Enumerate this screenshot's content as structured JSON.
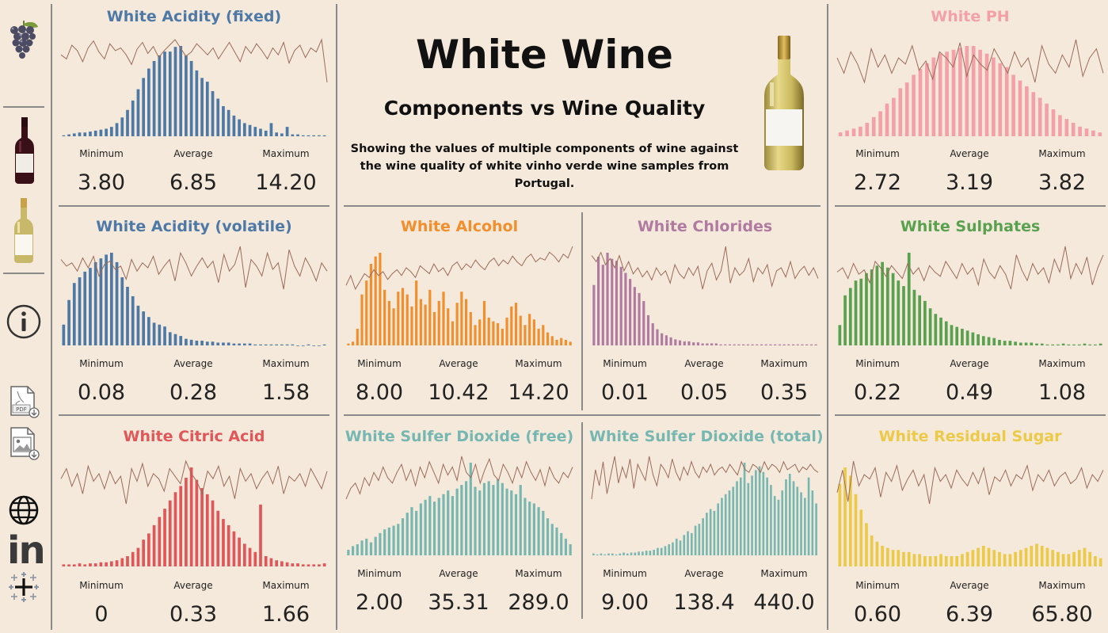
{
  "header": {
    "title": "White Wine",
    "subtitle": "Components vs Wine Quality",
    "description": "Showing the values of multiple components of wine against the wine quality of white vinho verde wine samples from Portugal."
  },
  "sidebar": {
    "icons": [
      "grapes-icon",
      "red-wine-bottle-icon",
      "white-wine-bottle-icon",
      "info-icon",
      "pdf-download-icon",
      "image-download-icon",
      "globe-icon",
      "linkedin-icon",
      "tableau-icon"
    ],
    "pdf_label": "PDF",
    "linkedin_label": "in"
  },
  "stat_labels": {
    "min": "Minimum",
    "avg": "Average",
    "max": "Maximum"
  },
  "panels": {
    "fixed_acidity": {
      "title": "White Acidity (fixed)",
      "color": "#4e79a7",
      "min": "3.80",
      "avg": "6.85",
      "max": "14.20"
    },
    "volatile_acidity": {
      "title": "White Acidity (volatile)",
      "color": "#4e79a7",
      "min": "0.08",
      "avg": "0.28",
      "max": "1.58"
    },
    "citric_acid": {
      "title": "White Citric Acid",
      "color": "#e15759",
      "min": "0",
      "avg": "0.33",
      "max": "1.66"
    },
    "ph": {
      "title": "White PH",
      "color": "#f4a0a8",
      "min": "2.72",
      "avg": "3.19",
      "max": "3.82"
    },
    "sulphates": {
      "title": "White Sulphates",
      "color": "#59a14f",
      "min": "0.22",
      "avg": "0.49",
      "max": "1.08"
    },
    "residual_sugar": {
      "title": "White Residual Sugar",
      "color": "#edc948",
      "min": "0.60",
      "avg": "6.39",
      "max": "65.80"
    },
    "alcohol": {
      "title": "White Alcohol",
      "color": "#f28e2b",
      "min": "8.00",
      "avg": "10.42",
      "max": "14.20"
    },
    "chlorides": {
      "title": "White Chlorides",
      "color": "#b07aa1",
      "min": "0.01",
      "avg": "0.05",
      "max": "0.35"
    },
    "so2_free": {
      "title": "White Sulfer Dioxide (free)",
      "color": "#76b7b2",
      "min": "2.00",
      "avg": "35.31",
      "max": "289.0"
    },
    "so2_total": {
      "title": "White Sulfer Dioxide (total)",
      "color": "#76b7b2",
      "min": "9.00",
      "avg": "138.4",
      "max": "440.0"
    }
  },
  "chart_data": [
    {
      "type": "bar",
      "id": "fixed_acidity",
      "title": "White Acidity (fixed)",
      "quality_line_color": "#9c6b5a",
      "values": [
        1,
        2,
        3,
        4,
        4,
        5,
        6,
        7,
        8,
        10,
        14,
        20,
        28,
        38,
        50,
        62,
        72,
        80,
        86,
        90,
        90,
        95,
        96,
        86,
        80,
        70,
        62,
        58,
        48,
        40,
        32,
        28,
        22,
        18,
        14,
        12,
        10,
        8,
        6,
        14,
        4,
        3,
        10,
        2,
        2,
        1,
        1,
        1,
        1,
        1
      ],
      "quality_line": [
        55,
        52,
        62,
        58,
        50,
        60,
        65,
        57,
        52,
        63,
        58,
        60,
        55,
        48,
        59,
        64,
        56,
        61,
        53,
        58,
        62,
        66,
        60,
        54,
        57,
        63,
        59,
        55,
        60,
        52,
        58,
        64,
        57,
        50,
        61,
        56,
        63,
        58,
        52,
        60,
        55,
        64,
        49,
        58,
        62,
        53,
        60,
        57,
        66,
        35
      ]
    },
    {
      "type": "bar",
      "id": "volatile_acidity",
      "title": "White Acidity (volatile)",
      "quality_line_color": "#9c6b5a",
      "values": [
        22,
        48,
        66,
        72,
        78,
        82,
        88,
        92,
        96,
        98,
        88,
        72,
        62,
        52,
        42,
        36,
        30,
        24,
        22,
        20,
        14,
        12,
        10,
        7,
        6,
        5,
        5,
        4,
        4,
        3,
        3,
        3,
        2,
        2,
        2,
        2,
        1,
        1,
        1,
        1,
        1,
        1,
        1,
        1,
        0,
        0,
        1,
        0,
        0,
        1
      ],
      "quality_line": [
        62,
        58,
        60,
        55,
        63,
        57,
        64,
        52,
        59,
        61,
        56,
        58,
        50,
        62,
        55,
        60,
        57,
        64,
        53,
        58,
        62,
        49,
        66,
        60,
        52,
        58,
        63,
        57,
        61,
        48,
        65,
        55,
        59,
        70,
        45,
        62,
        58,
        52,
        66,
        56,
        60,
        44,
        68,
        58,
        52,
        63,
        57,
        49,
        60,
        55
      ]
    },
    {
      "type": "bar",
      "id": "citric_acid",
      "title": "White Citric Acid",
      "quality_line_color": "#9c6b5a",
      "values": [
        2,
        2,
        2,
        3,
        2,
        3,
        3,
        4,
        4,
        5,
        6,
        8,
        10,
        14,
        18,
        26,
        32,
        40,
        48,
        56,
        64,
        72,
        78,
        86,
        96,
        84,
        76,
        70,
        64,
        54,
        46,
        40,
        34,
        28,
        22,
        18,
        14,
        60,
        10,
        8,
        6,
        5,
        4,
        3,
        3,
        2,
        2,
        2,
        2,
        3
      ],
      "quality_line": [
        58,
        62,
        55,
        60,
        52,
        63,
        57,
        60,
        54,
        61,
        56,
        59,
        48,
        62,
        57,
        64,
        55,
        60,
        58,
        53,
        62,
        59,
        56,
        65,
        60,
        57,
        52,
        61,
        58,
        63,
        55,
        59,
        50,
        62,
        57,
        60,
        54,
        58,
        61,
        56,
        63,
        52,
        59,
        57,
        60,
        55,
        62,
        58,
        54,
        61
      ]
    },
    {
      "type": "bar",
      "id": "ph",
      "title": "White PH",
      "quality_line_color": "#9c6b5a",
      "values": [
        4,
        6,
        8,
        10,
        14,
        20,
        26,
        34,
        40,
        50,
        56,
        64,
        70,
        76,
        82,
        86,
        88,
        90,
        92,
        94,
        94,
        90,
        86,
        82,
        76,
        72,
        64,
        58,
        52,
        46,
        40,
        34,
        28,
        22,
        18,
        14,
        10,
        8,
        6,
        4
      ],
      "quality_line": [
        60,
        55,
        62,
        58,
        52,
        63,
        57,
        61,
        55,
        60,
        58,
        64,
        56,
        59,
        53,
        62,
        60,
        57,
        65,
        54,
        61,
        58,
        56,
        63,
        59,
        55,
        62,
        57,
        60,
        52,
        64,
        58,
        55,
        61,
        57,
        66,
        54,
        60,
        63,
        55
      ]
    },
    {
      "type": "bar",
      "id": "sulphates",
      "title": "White Sulphates",
      "quality_line_color": "#9c6b5a",
      "values": [
        22,
        54,
        62,
        70,
        72,
        78,
        82,
        86,
        90,
        84,
        78,
        70,
        64,
        100,
        60,
        54,
        48,
        40,
        34,
        30,
        26,
        22,
        20,
        18,
        16,
        14,
        12,
        10,
        9,
        8,
        6,
        5,
        5,
        4,
        3,
        3,
        3,
        2,
        2,
        1,
        1,
        1,
        2,
        1,
        1,
        1,
        2,
        1,
        1,
        2
      ],
      "quality_line": [
        58,
        60,
        55,
        62,
        57,
        59,
        53,
        63,
        60,
        56,
        61,
        58,
        55,
        62,
        57,
        60,
        54,
        61,
        58,
        56,
        63,
        59,
        55,
        62,
        57,
        60,
        52,
        64,
        58,
        55,
        61,
        57,
        50,
        66,
        59,
        54,
        62,
        57,
        60,
        53,
        64,
        58,
        70,
        55,
        62,
        57,
        65,
        52,
        60,
        66
      ]
    },
    {
      "type": "bar",
      "id": "residual_sugar",
      "title": "White Residual Sugar",
      "quality_line_color": "#9c6b5a",
      "values": [
        80,
        96,
        88,
        70,
        55,
        42,
        30,
        24,
        20,
        18,
        16,
        16,
        14,
        14,
        12,
        12,
        10,
        10,
        10,
        12,
        10,
        10,
        10,
        12,
        14,
        16,
        18,
        20,
        18,
        16,
        14,
        12,
        12,
        14,
        16,
        18,
        20,
        22,
        20,
        18,
        16,
        14,
        12,
        12,
        14,
        16,
        18,
        14,
        10,
        8
      ],
      "quality_line": [
        52,
        62,
        48,
        66,
        55,
        60,
        58,
        63,
        50,
        61,
        57,
        64,
        53,
        58,
        62,
        55,
        60,
        47,
        63,
        57,
        60,
        54,
        62,
        58,
        55,
        61,
        56,
        63,
        51,
        59,
        57,
        62,
        55,
        60,
        58,
        64,
        53,
        60,
        57,
        62,
        55,
        59,
        61,
        56,
        58,
        63,
        54,
        60,
        57,
        62
      ]
    },
    {
      "type": "bar",
      "id": "alcohol",
      "title": "White Alcohol",
      "quality_line_color": "#9c6b5a",
      "values": [
        2,
        4,
        18,
        55,
        70,
        88,
        96,
        100,
        60,
        48,
        40,
        58,
        62,
        55,
        42,
        70,
        50,
        44,
        60,
        36,
        48,
        58,
        40,
        26,
        46,
        58,
        50,
        36,
        22,
        28,
        48,
        30,
        26,
        24,
        18,
        30,
        42,
        46,
        32,
        22,
        34,
        28,
        18,
        22,
        14,
        10,
        6,
        8,
        6,
        4
      ],
      "quality_line": [
        50,
        55,
        48,
        52,
        56,
        54,
        58,
        55,
        57,
        53,
        56,
        58,
        55,
        59,
        57,
        54,
        60,
        58,
        56,
        61,
        57,
        59,
        55,
        60,
        62,
        58,
        61,
        59,
        63,
        60,
        58,
        62,
        64,
        60,
        63,
        61,
        65,
        62,
        60,
        64,
        66,
        62,
        64,
        63,
        67,
        65,
        62,
        66,
        64,
        70
      ]
    },
    {
      "type": "bar",
      "id": "chlorides",
      "title": "White Chlorides",
      "quality_line_color": "#9c6b5a",
      "values": [
        60,
        88,
        80,
        92,
        86,
        84,
        78,
        72,
        66,
        58,
        52,
        44,
        30,
        22,
        16,
        12,
        10,
        8,
        6,
        5,
        4,
        4,
        3,
        3,
        2,
        2,
        2,
        2,
        1,
        1,
        1,
        1,
        1,
        1,
        1,
        1,
        1,
        1,
        1,
        1,
        1,
        1,
        1,
        1,
        1,
        1,
        1,
        1,
        1,
        1
      ],
      "quality_line": [
        70,
        66,
        72,
        64,
        68,
        62,
        70,
        60,
        66,
        58,
        62,
        56,
        60,
        54,
        62,
        57,
        60,
        52,
        64,
        58,
        55,
        62,
        57,
        63,
        48,
        60,
        65,
        54,
        60,
        76,
        52,
        62,
        57,
        60,
        68,
        53,
        62,
        58,
        64,
        50,
        60,
        62,
        56,
        66,
        55,
        60,
        63,
        57,
        62,
        55
      ]
    },
    {
      "type": "bar",
      "id": "so2_free",
      "title": "White Sulfer Dioxide (free)",
      "quality_line_color": "#9c6b5a",
      "values": [
        6,
        10,
        12,
        16,
        18,
        14,
        20,
        24,
        28,
        30,
        32,
        34,
        40,
        46,
        52,
        48,
        56,
        60,
        64,
        58,
        62,
        66,
        70,
        64,
        72,
        76,
        80,
        100,
        74,
        70,
        78,
        80,
        76,
        82,
        78,
        72,
        70,
        66,
        76,
        62,
        58,
        56,
        52,
        48,
        40,
        34,
        30,
        24,
        18,
        12
      ],
      "quality_line": [
        50,
        54,
        56,
        52,
        58,
        55,
        60,
        57,
        62,
        58,
        56,
        60,
        63,
        57,
        61,
        55,
        62,
        58,
        64,
        60,
        56,
        63,
        59,
        62,
        57,
        66,
        60,
        58,
        63,
        56,
        61,
        65,
        59,
        57,
        63,
        60,
        56,
        62,
        58,
        64,
        60,
        57,
        61,
        55,
        62,
        58,
        56,
        60,
        58,
        62
      ]
    },
    {
      "type": "bar",
      "id": "so2_total",
      "title": "White Sulfer Dioxide (total)",
      "quality_line_color": "#9c6b5a",
      "values": [
        2,
        1,
        2,
        1,
        2,
        2,
        1,
        2,
        3,
        2,
        3,
        3,
        4,
        4,
        5,
        5,
        6,
        8,
        8,
        10,
        12,
        14,
        18,
        16,
        22,
        26,
        24,
        32,
        34,
        40,
        46,
        50,
        48,
        56,
        62,
        66,
        70,
        74,
        80,
        84,
        100,
        78,
        86,
        92,
        96,
        90,
        84,
        76,
        64,
        60,
        70,
        82,
        88,
        80,
        74,
        68,
        62,
        84,
        70,
        56
      ],
      "quality_line": [
        40,
        62,
        50,
        68,
        44,
        58,
        72,
        52,
        64,
        56,
        70,
        48,
        66,
        60,
        54,
        72,
        58,
        50,
        66,
        62,
        56,
        70,
        60,
        54,
        64,
        58,
        68,
        60,
        56,
        64,
        60,
        66,
        58,
        62,
        64,
        60,
        66,
        62,
        58,
        68,
        62,
        60,
        66,
        64,
        60,
        68,
        62,
        66,
        64,
        60,
        68,
        62,
        64,
        66,
        60,
        64,
        62,
        66,
        62,
        60
      ]
    }
  ]
}
